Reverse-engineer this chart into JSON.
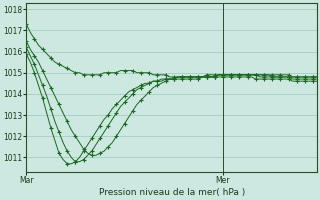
{
  "background_color": "#cce8e0",
  "grid_color": "#a0c8be",
  "line_color": "#1a6620",
  "marker_color": "#1a6620",
  "ylabel_ticks": [
    1011,
    1012,
    1013,
    1014,
    1015,
    1016,
    1017,
    1018
  ],
  "ylim": [
    1010.3,
    1018.3
  ],
  "xlabel": "Pression niveau de la mer( hPa )",
  "xtick_labels": [
    "Mar",
    "Mer"
  ],
  "xtick_positions": [
    0,
    48
  ],
  "vline_x": 48,
  "total_points": 72,
  "series": [
    [
      1017.3,
      1016.9,
      1016.6,
      1016.3,
      1016.1,
      1015.9,
      1015.7,
      1015.5,
      1015.4,
      1015.3,
      1015.2,
      1015.1,
      1015.0,
      1015.0,
      1014.9,
      1014.9,
      1014.9,
      1014.9,
      1014.9,
      1015.0,
      1015.0,
      1015.0,
      1015.0,
      1015.1,
      1015.1,
      1015.1,
      1015.1,
      1015.0,
      1015.0,
      1015.0,
      1015.0,
      1014.9,
      1014.9,
      1014.9,
      1014.9,
      1014.8,
      1014.8,
      1014.8,
      1014.8,
      1014.8,
      1014.8,
      1014.8,
      1014.8,
      1014.8,
      1014.8,
      1014.8,
      1014.8,
      1014.9,
      1014.9,
      1014.9,
      1014.9,
      1014.9,
      1014.9,
      1014.9,
      1014.9,
      1014.9,
      1014.9,
      1014.9,
      1014.9,
      1014.9,
      1014.9,
      1014.9,
      1014.9,
      1014.9,
      1014.9,
      1014.8,
      1014.8,
      1014.8,
      1014.8,
      1014.8,
      1014.8,
      1014.8
    ],
    [
      1016.5,
      1016.1,
      1015.8,
      1015.5,
      1015.1,
      1014.7,
      1014.3,
      1013.9,
      1013.5,
      1013.1,
      1012.7,
      1012.3,
      1012.0,
      1011.7,
      1011.4,
      1011.2,
      1011.1,
      1011.1,
      1011.2,
      1011.3,
      1011.5,
      1011.7,
      1012.0,
      1012.3,
      1012.6,
      1012.9,
      1013.2,
      1013.5,
      1013.7,
      1013.9,
      1014.1,
      1014.3,
      1014.4,
      1014.5,
      1014.6,
      1014.7,
      1014.7,
      1014.8,
      1014.8,
      1014.8,
      1014.8,
      1014.8,
      1014.8,
      1014.8,
      1014.9,
      1014.9,
      1014.9,
      1014.9,
      1014.9,
      1014.9,
      1014.9,
      1014.9,
      1014.9,
      1014.9,
      1014.9,
      1014.9,
      1014.9,
      1014.9,
      1014.9,
      1014.9,
      1014.8,
      1014.8,
      1014.8,
      1014.8,
      1014.8,
      1014.8,
      1014.8,
      1014.8,
      1014.8,
      1014.8,
      1014.8,
      1014.8
    ],
    [
      1016.2,
      1015.8,
      1015.4,
      1014.9,
      1014.4,
      1013.9,
      1013.3,
      1012.7,
      1012.2,
      1011.7,
      1011.3,
      1011.0,
      1010.8,
      1010.8,
      1010.9,
      1011.1,
      1011.3,
      1011.6,
      1011.9,
      1012.2,
      1012.5,
      1012.8,
      1013.1,
      1013.4,
      1013.6,
      1013.8,
      1014.0,
      1014.2,
      1014.3,
      1014.4,
      1014.5,
      1014.6,
      1014.6,
      1014.7,
      1014.7,
      1014.7,
      1014.7,
      1014.8,
      1014.8,
      1014.8,
      1014.8,
      1014.8,
      1014.8,
      1014.8,
      1014.8,
      1014.8,
      1014.8,
      1014.9,
      1014.9,
      1014.9,
      1014.9,
      1014.9,
      1014.9,
      1014.9,
      1014.9,
      1014.9,
      1014.9,
      1014.8,
      1014.8,
      1014.8,
      1014.8,
      1014.8,
      1014.8,
      1014.8,
      1014.8,
      1014.7,
      1014.7,
      1014.7,
      1014.7,
      1014.7,
      1014.7,
      1014.7
    ],
    [
      1015.9,
      1015.5,
      1015.0,
      1014.4,
      1013.8,
      1013.1,
      1012.4,
      1011.8,
      1011.2,
      1010.9,
      1010.7,
      1010.7,
      1010.8,
      1011.0,
      1011.3,
      1011.6,
      1011.9,
      1012.2,
      1012.5,
      1012.8,
      1013.0,
      1013.3,
      1013.5,
      1013.7,
      1013.9,
      1014.1,
      1014.2,
      1014.3,
      1014.4,
      1014.5,
      1014.5,
      1014.6,
      1014.6,
      1014.6,
      1014.7,
      1014.7,
      1014.7,
      1014.7,
      1014.7,
      1014.7,
      1014.7,
      1014.7,
      1014.7,
      1014.8,
      1014.8,
      1014.8,
      1014.8,
      1014.8,
      1014.8,
      1014.8,
      1014.8,
      1014.8,
      1014.8,
      1014.8,
      1014.8,
      1014.8,
      1014.7,
      1014.7,
      1014.7,
      1014.7,
      1014.7,
      1014.7,
      1014.7,
      1014.7,
      1014.7,
      1014.6,
      1014.6,
      1014.6,
      1014.6,
      1014.6,
      1014.6,
      1014.6
    ]
  ]
}
